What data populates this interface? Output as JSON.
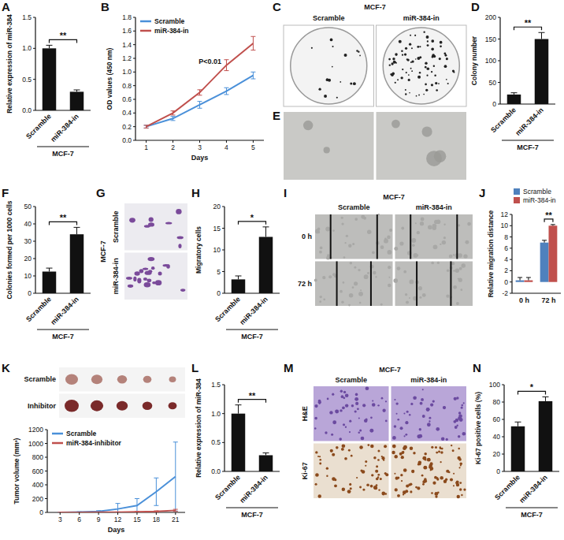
{
  "chart_data": [
    {
      "type": "bar",
      "title": "A",
      "subtitle": "MCF-7",
      "y_label": "Relative expression of miR-384",
      "categories": [
        "Scramble",
        "miR-384-in"
      ],
      "values": [
        1.0,
        0.3
      ],
      "errors": [
        0.05,
        0.03
      ],
      "color": "#111111",
      "ylim": [
        0,
        1.5
      ],
      "yticks": [
        {
          "value": 0,
          "label": "0.0"
        },
        {
          "value": 0.5,
          "label": "0.5"
        },
        {
          "value": 1,
          "label": "1.0"
        },
        {
          "value": 1.5,
          "label": "1.5"
        }
      ],
      "annotations": [
        "**"
      ]
    },
    {
      "type": "line",
      "title": "B",
      "x_label": "Days",
      "y_label": "OD values (450 nm)",
      "x": [
        1,
        2,
        3,
        4,
        5
      ],
      "xlim": [
        0.6,
        5.4
      ],
      "xticks": [
        1,
        2,
        3,
        4,
        5
      ],
      "ylim": [
        0,
        1.8
      ],
      "yticks": [
        {
          "value": 0,
          "label": "0.0"
        },
        {
          "value": 0.2,
          "label": "0.2"
        },
        {
          "value": 0.4,
          "label": "0.4"
        },
        {
          "value": 0.6,
          "label": "0.6"
        },
        {
          "value": 0.8,
          "label": "0.8"
        },
        {
          "value": 1.0,
          "label": "1.0"
        },
        {
          "value": 1.2,
          "label": "1.2"
        },
        {
          "value": 1.4,
          "label": "1.4"
        },
        {
          "value": 1.6,
          "label": "1.6"
        },
        {
          "value": 1.8,
          "label": "1.8"
        }
      ],
      "series": [
        {
          "name": "Scramble",
          "color": "#4a90d9",
          "values": [
            0.2,
            0.32,
            0.52,
            0.72,
            0.95
          ],
          "errors": [
            0.02,
            0.03,
            0.05,
            0.05,
            0.05
          ]
        },
        {
          "name": "miR-384-in",
          "color": "#c0504d",
          "values": [
            0.2,
            0.4,
            0.7,
            1.1,
            1.42
          ],
          "errors": [
            0.02,
            0.03,
            0.04,
            0.08,
            0.1
          ]
        }
      ],
      "legend": "upper left",
      "annotations": [
        "P<0.01"
      ]
    },
    {
      "type": "bar",
      "title": "D",
      "subtitle": "MCF-7",
      "y_label": "Colony number",
      "categories": [
        "Scramble",
        "miR-384-in"
      ],
      "values": [
        22,
        150
      ],
      "errors": [
        4,
        15
      ],
      "color": "#111111",
      "ylim": [
        0,
        200
      ],
      "yticks": [
        0,
        50,
        100,
        150,
        200
      ],
      "annotations": [
        "**"
      ]
    },
    {
      "type": "bar",
      "title": "F",
      "subtitle": "MCF-7",
      "y_label": "Colonies formed per 1000 cells",
      "categories": [
        "Scramble",
        "miR-384-in"
      ],
      "values": [
        12.5,
        34
      ],
      "errors": [
        2,
        4
      ],
      "color": "#111111",
      "ylim": [
        0,
        50
      ],
      "yticks": [
        0,
        10,
        20,
        30,
        40,
        50
      ],
      "annotations": [
        "**"
      ]
    },
    {
      "type": "bar",
      "title": "H",
      "subtitle": "MCF-7",
      "y_label": "Migratory cells",
      "categories": [
        "Scramble",
        "miR-384-in"
      ],
      "values": [
        3.2,
        13
      ],
      "errors": [
        0.8,
        2.3
      ],
      "color": "#111111",
      "ylim": [
        0,
        20
      ],
      "yticks": [
        0,
        5,
        10,
        15,
        20
      ],
      "annotations": [
        "*"
      ]
    },
    {
      "type": "bar",
      "title": "J",
      "y_label": "Relative migration distance",
      "categories": [
        "0 h",
        "72 h"
      ],
      "series": [
        {
          "name": "Scramble",
          "color": "#4f81bd",
          "values": [
            0.3,
            7
          ],
          "errors": [
            0.5,
            0.4
          ]
        },
        {
          "name": "miR-384-in",
          "color": "#c0504d",
          "values": [
            0.3,
            10
          ],
          "errors": [
            0.5,
            0.2
          ]
        }
      ],
      "ylim": [
        -2,
        12
      ],
      "yticks": [
        -2,
        0,
        2,
        4,
        6,
        8,
        10,
        12
      ],
      "legend": "upper left",
      "annotations": [
        "**"
      ]
    },
    {
      "type": "line",
      "x_label": "Days",
      "y_label": "Tumor volume (mm³)",
      "x": [
        3,
        6,
        9,
        12,
        15,
        18,
        21
      ],
      "xlim": [
        1,
        22.5
      ],
      "xticks": [
        3,
        6,
        9,
        12,
        15,
        18,
        21
      ],
      "ylim": [
        0,
        1200
      ],
      "yticks": [
        0,
        200,
        400,
        600,
        800,
        1000,
        1200
      ],
      "series": [
        {
          "name": "Scramble",
          "color": "#4a90d9",
          "values": [
            0,
            5,
            15,
            50,
            100,
            300,
            520
          ],
          "errors": [
            0,
            5,
            10,
            80,
            100,
            200,
            500
          ]
        },
        {
          "name": "miR-384-inhibitor",
          "color": "#c0504d",
          "values": [
            0,
            0,
            2,
            4,
            8,
            15,
            30
          ],
          "errors": [
            0,
            0,
            2,
            3,
            5,
            8,
            15
          ]
        }
      ],
      "legend": "upper left"
    },
    {
      "type": "bar",
      "title": "L",
      "subtitle": "MCF-7",
      "y_label": "Relative expression of miR-384",
      "categories": [
        "Scramble",
        "miR-384-in"
      ],
      "values": [
        1.0,
        0.28
      ],
      "errors": [
        0.15,
        0.04
      ],
      "color": "#111111",
      "ylim": [
        0,
        1.5
      ],
      "yticks": [
        {
          "value": 0,
          "label": "0.0"
        },
        {
          "value": 0.5,
          "label": "0.5"
        },
        {
          "value": 1,
          "label": "1.0"
        },
        {
          "value": 1.5,
          "label": "1.5"
        }
      ],
      "annotations": [
        "**"
      ]
    },
    {
      "type": "bar",
      "title": "N",
      "subtitle": "MCF-7",
      "y_label": "Ki-67 positive cells (%)",
      "categories": [
        "Scramble",
        "miR-384-in"
      ],
      "values": [
        52,
        81
      ],
      "errors": [
        5,
        5
      ],
      "color": "#111111",
      "ylim": [
        0,
        100
      ],
      "yticks": [
        0,
        20,
        40,
        60,
        80,
        100
      ],
      "annotations": [
        "*"
      ]
    }
  ],
  "images": [
    {
      "title": "C",
      "subtitle": "MCF-7",
      "columns": [
        "Scramble",
        "miR-384-in"
      ]
    },
    {
      "title": "E"
    },
    {
      "title": "G",
      "subtitle": "MCF-7",
      "rows": [
        "Scramble",
        "miR-384-in"
      ]
    },
    {
      "title": "I",
      "subtitle": "MCF-7",
      "columns": [
        "Scramble",
        "miR-384-in"
      ],
      "rows": [
        "0 h",
        "72 h"
      ]
    },
    {
      "title": "K",
      "rows": [
        "Scramble",
        "Inhibitor"
      ]
    },
    {
      "title": "M",
      "subtitle": "MCF-7",
      "columns": [
        "Scramble",
        "miR-384-in"
      ],
      "rows": [
        "H&E",
        "Ki-67"
      ]
    }
  ]
}
